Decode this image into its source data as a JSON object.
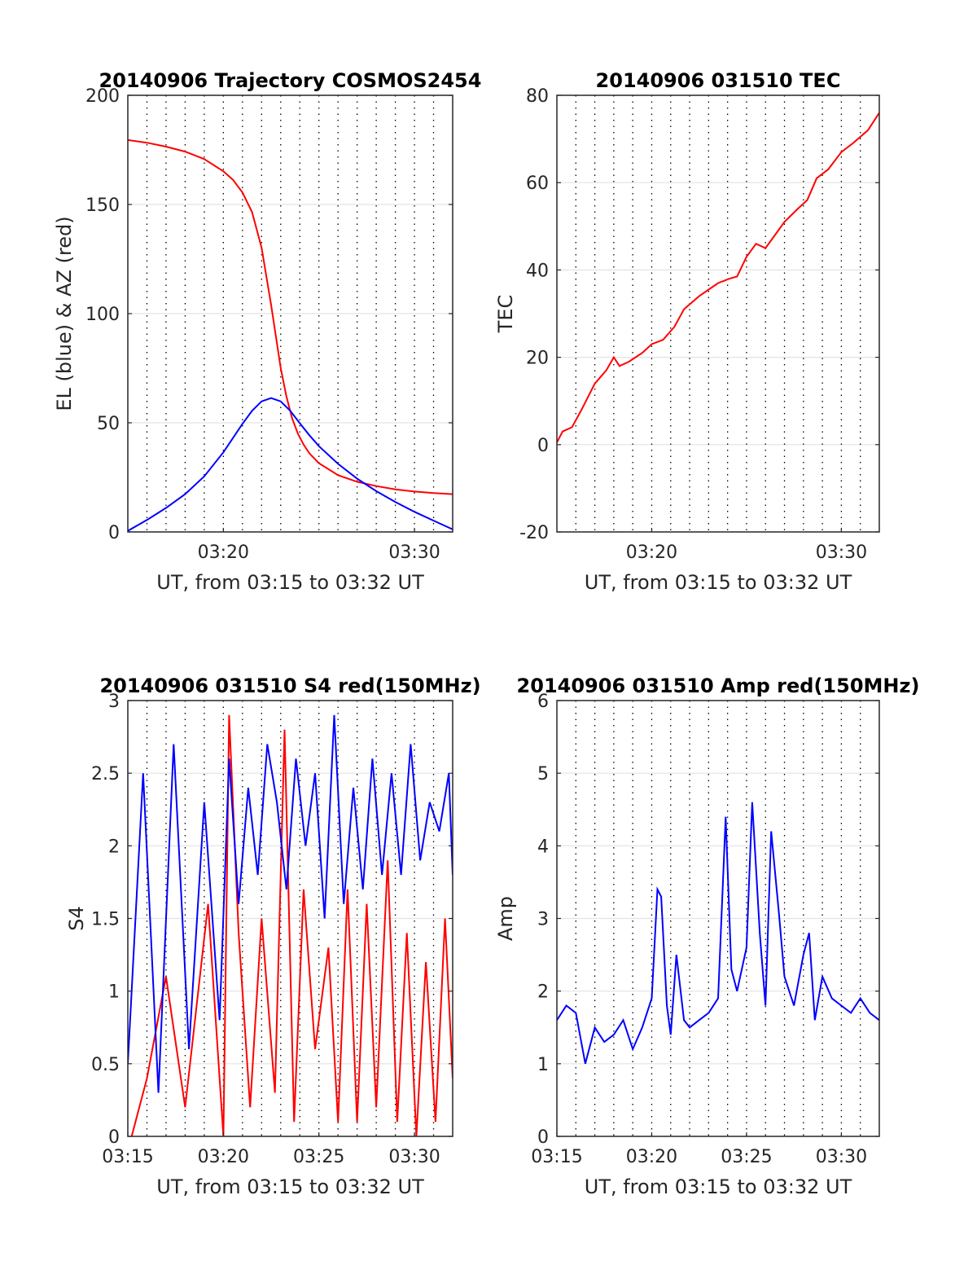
{
  "figure": {
    "background": "#ffffff"
  },
  "chart_data": [
    {
      "type": "line",
      "title": "20140906 Trajectory COSMOS2454",
      "xlabel": "UT, from 03:15 to 03:32 UT",
      "ylabel": "EL (blue) & AZ (red)",
      "xlim": [
        0,
        17
      ],
      "ylim": [
        0,
        200
      ],
      "xticks": [
        {
          "x": 5,
          "label": "03:20"
        },
        {
          "x": 15,
          "label": "03:30"
        }
      ],
      "yticks": [
        {
          "y": 0,
          "label": "0"
        },
        {
          "y": 50,
          "label": "50"
        },
        {
          "y": 100,
          "label": "100"
        },
        {
          "y": 150,
          "label": "150"
        },
        {
          "y": 200,
          "label": "200"
        }
      ],
      "grid": true,
      "series": [
        {
          "color": "#ff0000",
          "x": [
            0,
            1,
            2,
            3,
            4,
            5,
            5.5,
            6,
            6.5,
            7,
            7.5,
            8,
            8.3,
            8.6,
            8.9,
            9.2,
            9.5,
            10,
            11,
            12,
            13,
            14,
            15,
            16,
            17
          ],
          "y": [
            179.5,
            178.3,
            176.5,
            174.2,
            170.8,
            165.2,
            161.3,
            155.5,
            146.5,
            130.2,
            104,
            75,
            62,
            52,
            45,
            40,
            36,
            31.5,
            26,
            23,
            21,
            19.5,
            18.5,
            17.8,
            17.3
          ]
        },
        {
          "color": "#0000ff",
          "x": [
            0,
            1,
            2,
            3,
            4,
            5,
            6,
            6.5,
            7,
            7.5,
            8,
            8.5,
            9,
            9.5,
            10,
            11,
            12,
            13,
            14,
            15,
            16,
            17
          ],
          "y": [
            0.5,
            5.5,
            11,
            17.3,
            25.5,
            36.5,
            49.5,
            55.5,
            59.8,
            61.3,
            59.8,
            55.5,
            49.8,
            44.3,
            39.3,
            31.2,
            24.4,
            18.7,
            13.7,
            9.2,
            5.2,
            1.2
          ]
        }
      ]
    },
    {
      "type": "line",
      "title": "20140906 031510 TEC",
      "xlabel": "UT, from 03:15 to 03:32 UT",
      "ylabel": "TEC",
      "xlim": [
        0,
        17
      ],
      "ylim": [
        -20,
        80
      ],
      "xticks": [
        {
          "x": 5,
          "label": "03:20"
        },
        {
          "x": 15,
          "label": "03:30"
        }
      ],
      "yticks": [
        {
          "y": -20,
          "label": "-20"
        },
        {
          "y": 0,
          "label": "0"
        },
        {
          "y": 20,
          "label": "20"
        },
        {
          "y": 40,
          "label": "40"
        },
        {
          "y": 60,
          "label": "60"
        },
        {
          "y": 80,
          "label": "80"
        }
      ],
      "grid": true,
      "series": [
        {
          "color": "#ff0000",
          "x": [
            0,
            0.3,
            0.8,
            1.3,
            2,
            2.6,
            3,
            3.3,
            3.8,
            4.5,
            5,
            5.6,
            6.2,
            6.7,
            7.5,
            8,
            8.5,
            9.1,
            9.5,
            10,
            10.5,
            11,
            11.5,
            12,
            12.7,
            13.2,
            13.7,
            14.3,
            15,
            15.6,
            16.4,
            17
          ],
          "y": [
            0.5,
            3,
            4,
            8,
            14,
            17,
            20,
            18,
            19,
            21,
            23,
            24,
            27,
            31,
            34,
            35.5,
            37,
            38,
            38.5,
            43,
            46,
            45,
            48,
            51,
            54,
            56,
            61,
            63,
            67,
            69,
            72,
            76
          ]
        }
      ]
    },
    {
      "type": "line",
      "title": "20140906 031510 S4 red(150MHz)",
      "xlabel": "UT, from 03:15 to 03:32 UT",
      "ylabel": "S4",
      "xlim": [
        0,
        17
      ],
      "ylim": [
        0,
        3
      ],
      "xticks": [
        {
          "x": 0,
          "label": "03:15"
        },
        {
          "x": 5,
          "label": "03:20"
        },
        {
          "x": 10,
          "label": "03:25"
        },
        {
          "x": 15,
          "label": "03:30"
        }
      ],
      "yticks": [
        {
          "y": 0,
          "label": "0"
        },
        {
          "y": 0.5,
          "label": "0.5"
        },
        {
          "y": 1,
          "label": "1"
        },
        {
          "y": 1.5,
          "label": "1.5"
        },
        {
          "y": 2,
          "label": "2"
        },
        {
          "y": 2.5,
          "label": "2.5"
        },
        {
          "y": 3,
          "label": "3"
        }
      ],
      "grid": true,
      "series": [
        {
          "color": "#ff0000",
          "x": [
            0.2,
            1,
            2,
            3,
            4.2,
            5,
            5.3,
            5.8,
            6.4,
            7,
            7.7,
            8.2,
            8.7,
            9.2,
            9.8,
            10.5,
            11,
            11.5,
            12,
            12.5,
            13,
            13.6,
            14.1,
            14.6,
            15.1,
            15.6,
            16.1,
            16.6,
            17
          ],
          "y": [
            0,
            0.4,
            1.1,
            0.2,
            1.6,
            0,
            2.9,
            1.4,
            0.2,
            1.5,
            0.3,
            2.8,
            0.1,
            1.7,
            0.6,
            1.3,
            0.1,
            1.7,
            0.1,
            1.6,
            0.2,
            1.9,
            0.1,
            1.4,
            0,
            1.2,
            0.1,
            1.5,
            0.4
          ]
        },
        {
          "color": "#0000ff",
          "x": [
            0,
            0.8,
            1.6,
            2.4,
            3.2,
            4,
            4.8,
            5.3,
            5.8,
            6.3,
            6.8,
            7.3,
            7.8,
            8.3,
            8.8,
            9.3,
            9.8,
            10.3,
            10.8,
            11.3,
            11.8,
            12.3,
            12.8,
            13.3,
            13.8,
            14.3,
            14.8,
            15.3,
            15.8,
            16.3,
            16.8,
            17
          ],
          "y": [
            0.5,
            2.5,
            0.3,
            2.7,
            0.6,
            2.3,
            0.8,
            2.6,
            1.6,
            2.4,
            1.8,
            2.7,
            2.3,
            1.7,
            2.6,
            2.0,
            2.5,
            1.5,
            2.9,
            1.6,
            2.4,
            1.7,
            2.6,
            1.8,
            2.5,
            1.8,
            2.7,
            1.9,
            2.3,
            2.1,
            2.5,
            1.8
          ]
        }
      ]
    },
    {
      "type": "line",
      "title": "20140906 031510 Amp red(150MHz)",
      "xlabel": "UT, from 03:15 to 03:32 UT",
      "ylabel": "Amp",
      "xlim": [
        0,
        17
      ],
      "ylim": [
        0,
        6
      ],
      "xticks": [
        {
          "x": 0,
          "label": "03:15"
        },
        {
          "x": 5,
          "label": "03:20"
        },
        {
          "x": 10,
          "label": "03:25"
        },
        {
          "x": 15,
          "label": "03:30"
        }
      ],
      "yticks": [
        {
          "y": 0,
          "label": "0"
        },
        {
          "y": 1,
          "label": "1"
        },
        {
          "y": 2,
          "label": "2"
        },
        {
          "y": 3,
          "label": "3"
        },
        {
          "y": 4,
          "label": "4"
        },
        {
          "y": 5,
          "label": "5"
        },
        {
          "y": 6,
          "label": "6"
        }
      ],
      "grid": true,
      "series": [
        {
          "color": "#0000ff",
          "x": [
            0,
            0.5,
            1,
            1.5,
            2,
            2.5,
            3,
            3.5,
            4,
            4.5,
            5,
            5.3,
            5.5,
            5.8,
            6,
            6.3,
            6.7,
            7,
            7.5,
            8,
            8.5,
            8.9,
            9.2,
            9.5,
            10,
            10.3,
            10.7,
            11,
            11.3,
            11.7,
            12,
            12.5,
            13,
            13.3,
            13.6,
            14,
            14.5,
            15,
            15.5,
            16,
            16.5,
            17
          ],
          "y": [
            1.6,
            1.8,
            1.7,
            1.0,
            1.5,
            1.3,
            1.4,
            1.6,
            1.2,
            1.5,
            1.9,
            3.4,
            3.3,
            1.8,
            1.4,
            2.5,
            1.6,
            1.5,
            1.6,
            1.7,
            1.9,
            4.4,
            2.3,
            2.0,
            2.6,
            4.6,
            2.8,
            1.8,
            4.2,
            3.1,
            2.2,
            1.8,
            2.5,
            2.8,
            1.6,
            2.2,
            1.9,
            1.8,
            1.7,
            1.9,
            1.7,
            1.6
          ]
        }
      ]
    }
  ]
}
